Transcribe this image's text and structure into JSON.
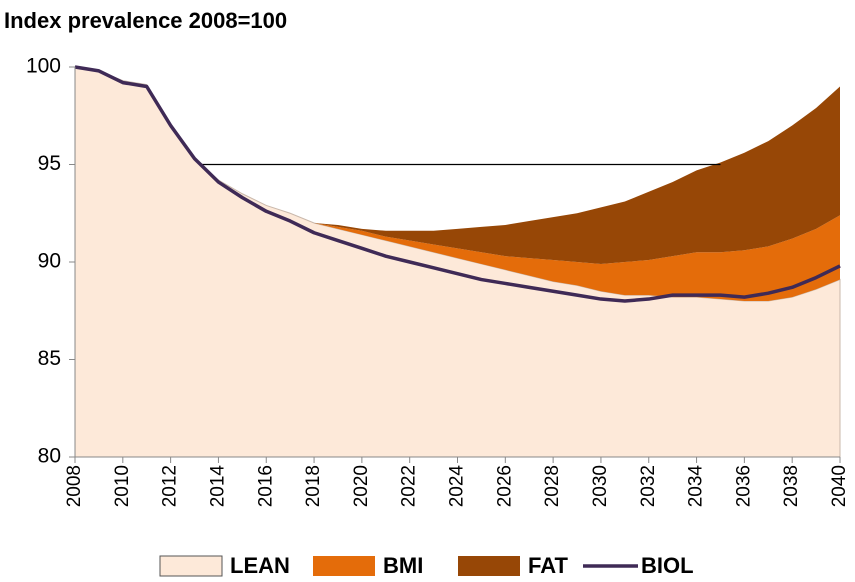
{
  "chart_data": {
    "type": "area",
    "title": "Index prevalence 2008=100",
    "x": [
      2008,
      2009,
      2010,
      2011,
      2012,
      2013,
      2014,
      2015,
      2016,
      2017,
      2018,
      2019,
      2020,
      2021,
      2022,
      2023,
      2024,
      2025,
      2026,
      2027,
      2028,
      2029,
      2030,
      2031,
      2032,
      2033,
      2034,
      2035,
      2036,
      2037,
      2038,
      2039,
      2040
    ],
    "series": [
      {
        "name": "LEAN",
        "color": "#fde9d9",
        "values": [
          100,
          99.8,
          99.3,
          99.1,
          97,
          95.3,
          94.2,
          93.5,
          92.9,
          92.5,
          92.0,
          91.7,
          91.4,
          91.1,
          90.8,
          90.5,
          90.2,
          89.9,
          89.6,
          89.3,
          89.0,
          88.8,
          88.5,
          88.3,
          88.3,
          88.2,
          88.2,
          88.1,
          88.0,
          88.0,
          88.2,
          88.6,
          89.1
        ]
      },
      {
        "name": "BMI",
        "color": "#e46c0a",
        "values": [
          0,
          0,
          0,
          0,
          0,
          0,
          0,
          0,
          0,
          0,
          0,
          0.1,
          0.2,
          0.2,
          0.3,
          0.4,
          0.5,
          0.6,
          0.7,
          0.9,
          1.1,
          1.2,
          1.4,
          1.7,
          1.8,
          2.1,
          2.3,
          2.4,
          2.6,
          2.8,
          3.0,
          3.1,
          3.3
        ]
      },
      {
        "name": "FAT",
        "color": "#974706",
        "values": [
          0,
          0,
          0,
          0,
          0,
          0,
          0,
          0,
          0,
          0,
          0,
          0.1,
          0.1,
          0.3,
          0.5,
          0.7,
          1.0,
          1.3,
          1.6,
          1.9,
          2.2,
          2.5,
          2.9,
          3.1,
          3.5,
          3.8,
          4.2,
          4.6,
          5.0,
          5.4,
          5.8,
          6.2,
          6.6
        ]
      },
      {
        "name": "BIOL",
        "color": "#3f2a56",
        "style": "line",
        "values": [
          100,
          99.8,
          99.2,
          99.0,
          97,
          95.3,
          94.1,
          93.3,
          92.6,
          92.1,
          91.5,
          91.1,
          90.7,
          90.3,
          90.0,
          89.7,
          89.4,
          89.1,
          88.9,
          88.7,
          88.5,
          88.3,
          88.1,
          88.0,
          88.1,
          88.3,
          88.3,
          88.3,
          88.2,
          88.4,
          88.7,
          89.2,
          89.8
        ]
      }
    ],
    "reference_line": {
      "y": 95,
      "x": [
        2013.3,
        2035
      ]
    },
    "xlim": [
      2008,
      2040
    ],
    "xticks": [
      2008,
      2010,
      2012,
      2014,
      2016,
      2018,
      2020,
      2022,
      2024,
      2026,
      2028,
      2030,
      2032,
      2034,
      2036,
      2038,
      2040
    ],
    "ylim": [
      80,
      100
    ],
    "yticks": [
      80,
      85,
      90,
      95,
      100
    ],
    "legend": "bottom"
  }
}
